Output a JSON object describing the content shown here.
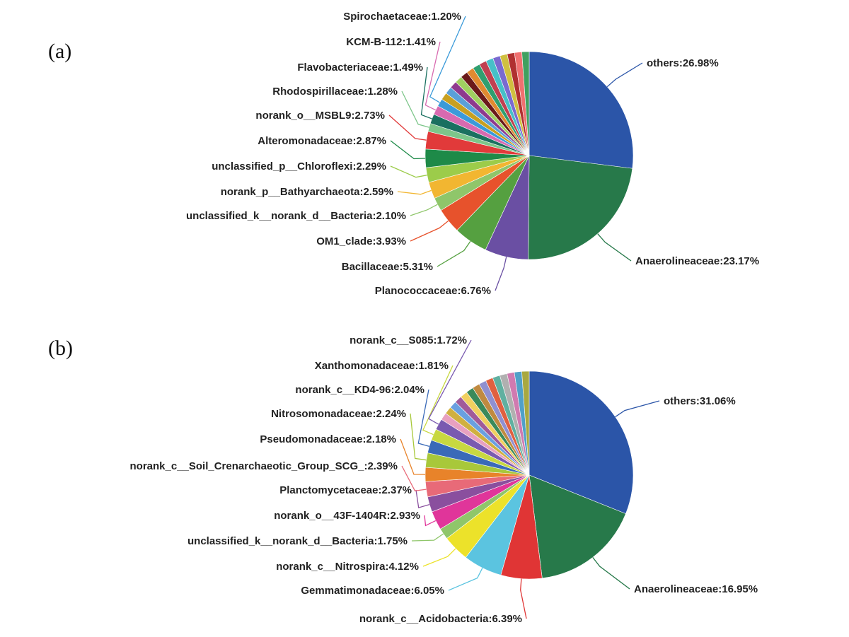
{
  "chart_data": [
    {
      "type": "pie",
      "panel_label": "(a)",
      "labeled_slices": [
        {
          "label": "others:26.98%",
          "name": "others",
          "value": 26.98,
          "color": "#2b55a8"
        },
        {
          "label": "Anaerolineaceae:23.17%",
          "name": "Anaerolineaceae",
          "value": 23.17,
          "color": "#27794a"
        },
        {
          "label": "Planococcaceae:6.76%",
          "name": "Planococcaceae",
          "value": 6.76,
          "color": "#6a4fa3"
        },
        {
          "label": "Bacillaceae:5.31%",
          "name": "Bacillaceae",
          "value": 5.31,
          "color": "#55a040"
        },
        {
          "label": "OM1_clade:3.93%",
          "name": "OM1_clade",
          "value": 3.93,
          "color": "#e7522c"
        },
        {
          "label": "unclassified_k__norank_d__Bacteria:2.10%",
          "name": "unclassified_k__norank_d__Bacteria",
          "value": 2.1,
          "color": "#8fc66a"
        },
        {
          "label": "norank_p__Bathyarchaeota:2.59%",
          "name": "norank_p__Bathyarchaeota",
          "value": 2.59,
          "color": "#f2b631"
        },
        {
          "label": "unclassified_p__Chloroflexi:2.29%",
          "name": "unclassified_p__Chloroflexi",
          "value": 2.29,
          "color": "#9ccc4a"
        },
        {
          "label": "Alteromonadaceae:2.87%",
          "name": "Alteromonadaceae",
          "value": 2.87,
          "color": "#1e8a48"
        },
        {
          "label": "norank_o__MSBL9:2.73%",
          "name": "norank_o__MSBL9",
          "value": 2.73,
          "color": "#e13a3a"
        },
        {
          "label": "Rhodospirillaceae:1.28%",
          "name": "Rhodospirillaceae",
          "value": 1.28,
          "color": "#7dc68a"
        },
        {
          "label": "Flavobacteriaceae:1.49%",
          "name": "Flavobacteriaceae",
          "value": 1.49,
          "color": "#1a7060"
        },
        {
          "label": "KCM-B-112:1.41%",
          "name": "KCM-B-112",
          "value": 1.41,
          "color": "#d86ab0"
        },
        {
          "label": "Spirochaetaceae:1.20%",
          "name": "Spirochaetaceae",
          "value": 1.2,
          "color": "#3a9ad9"
        }
      ],
      "unlabeled_colors": [
        "#c8a020",
        "#5aa0d8",
        "#8e3a8e",
        "#a0d060",
        "#6a1a1a",
        "#e08a30",
        "#2f9f6f",
        "#c04050",
        "#46c0c8",
        "#7a6ad0",
        "#d0c040",
        "#b03030",
        "#f07070",
        "#40a060"
      ]
    },
    {
      "type": "pie",
      "panel_label": "(b)",
      "labeled_slices": [
        {
          "label": "others:31.06%",
          "name": "others",
          "value": 31.06,
          "color": "#2b55a8"
        },
        {
          "label": "Anaerolineaceae:16.95%",
          "name": "Anaerolineaceae",
          "value": 16.95,
          "color": "#27794a"
        },
        {
          "label": "norank_c__Acidobacteria:6.39%",
          "name": "norank_c__Acidobacteria",
          "value": 6.39,
          "color": "#e03535"
        },
        {
          "label": "Gemmatimonadaceae:6.05%",
          "name": "Gemmatimonadaceae",
          "value": 6.05,
          "color": "#5bc4e0"
        },
        {
          "label": "norank_c__Nitrospira:4.12%",
          "name": "norank_c__Nitrospira",
          "value": 4.12,
          "color": "#ece22a"
        },
        {
          "label": "unclassified_k__norank_d__Bacteria:1.75%",
          "name": "unclassified_k__norank_d__Bacteria",
          "value": 1.75,
          "color": "#8fc66a"
        },
        {
          "label": "norank_o__43F-1404R:2.93%",
          "name": "norank_o__43F-1404R",
          "value": 2.93,
          "color": "#e0359a"
        },
        {
          "label": "Planctomycetaceae:2.37%",
          "name": "Planctomycetaceae",
          "value": 2.37,
          "color": "#8a4f9e"
        },
        {
          "label": "norank_c__Soil_Crenarchaeotic_Group_SCG_:2.39%",
          "name": "norank_c__Soil_Crenarchaeotic_Group_SCG_",
          "value": 2.39,
          "color": "#e86a78"
        },
        {
          "label": "Pseudomonadaceae:2.18%",
          "name": "Pseudomonadaceae",
          "value": 2.18,
          "color": "#e8832a"
        },
        {
          "label": "Nitrosomonadaceae:2.24%",
          "name": "Nitrosomonadaceae",
          "value": 2.24,
          "color": "#a8c83a"
        },
        {
          "label": "norank_c__KD4-96:2.04%",
          "name": "norank_c__KD4-96",
          "value": 2.04,
          "color": "#3a6ab8"
        },
        {
          "label": "Xanthomonadaceae:1.81%",
          "name": "Xanthomonadaceae",
          "value": 1.81,
          "color": "#c8d840"
        },
        {
          "label": "norank_c__S085:1.72%",
          "name": "norank_c__S085",
          "value": 1.72,
          "color": "#7a5ab0"
        }
      ],
      "unlabeled_colors": [
        "#e8a0c0",
        "#d0b040",
        "#6aa0e0",
        "#a05a9a",
        "#f0d060",
        "#3a8a5a",
        "#c08a40",
        "#9090d0",
        "#e06040",
        "#60b0a0",
        "#b0b0b0",
        "#d07ab0",
        "#50a0c8",
        "#a8a840"
      ]
    }
  ]
}
